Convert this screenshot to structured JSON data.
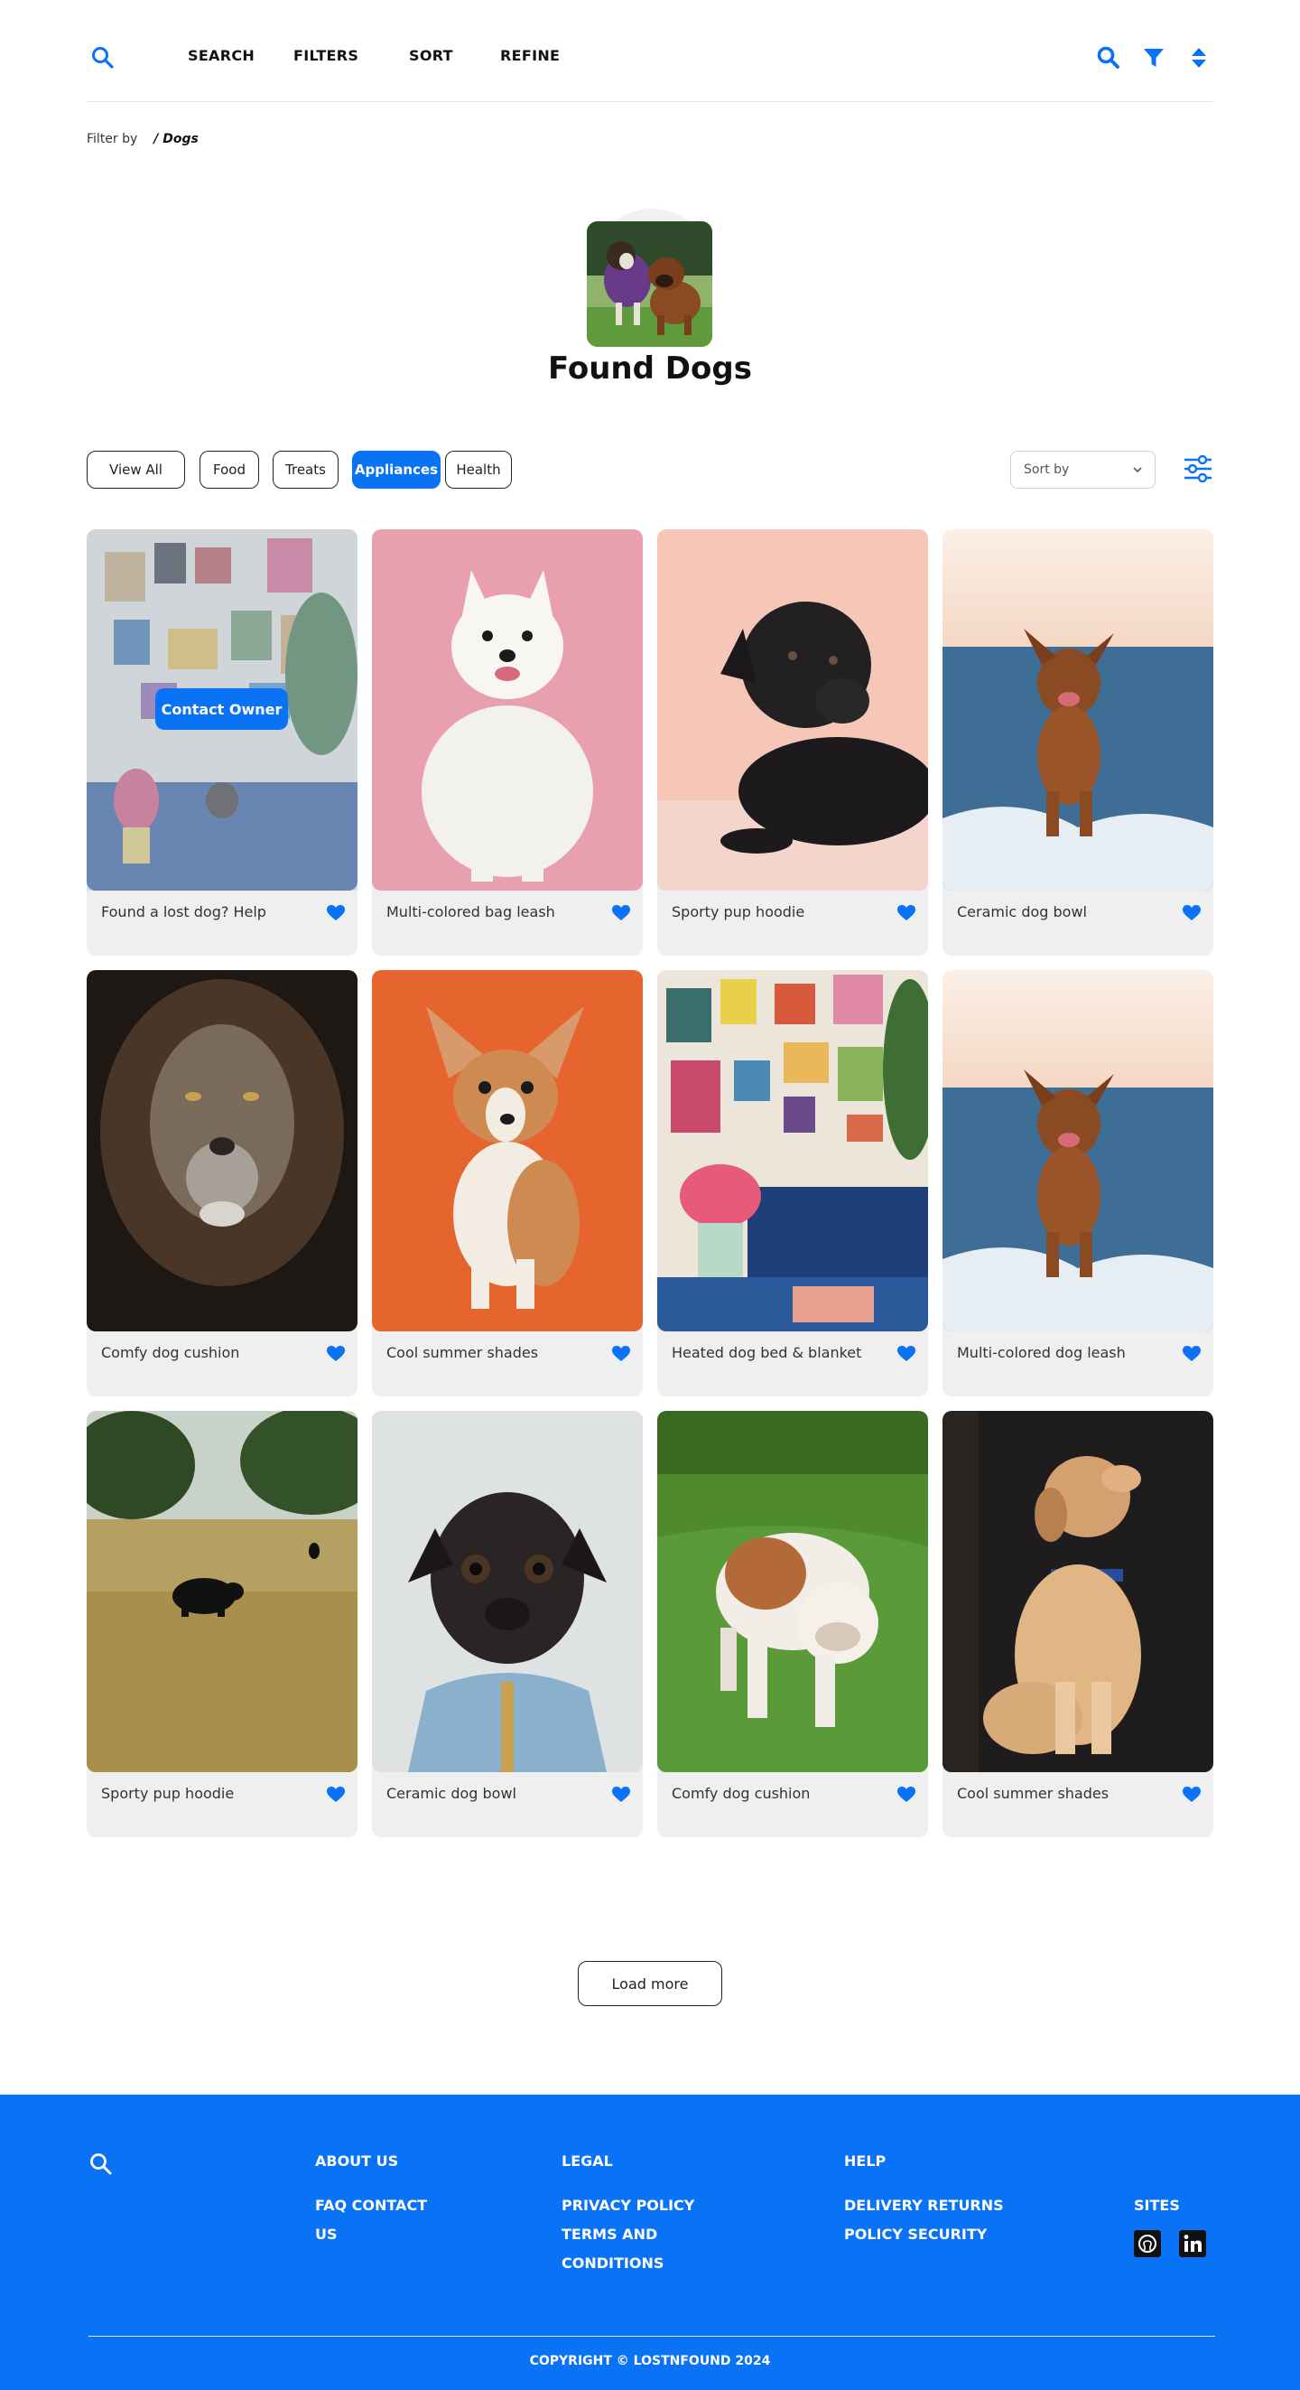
{
  "header": {
    "nav": [
      "SEARCH",
      "FILTERS",
      "SORT",
      "REFINE"
    ],
    "icons": [
      "search-icon",
      "filter-icon",
      "sort-icon"
    ]
  },
  "breadcrumb": {
    "label": "Filter by",
    "current": "/ Dogs"
  },
  "hero": {
    "title": "Found Dogs"
  },
  "filters": {
    "chips": [
      "View All",
      "Food",
      "Treats",
      "Appliances",
      "Health"
    ],
    "active": "Appliances",
    "sort_placeholder": "Sort by"
  },
  "cards": [
    {
      "title": "Found a lost dog? Help",
      "overlay_button": "Contact Owner"
    },
    {
      "title": "Multi-colored bag leash"
    },
    {
      "title": "Sporty pup hoodie"
    },
    {
      "title": "Ceramic dog bowl"
    },
    {
      "title": "Comfy dog cushion"
    },
    {
      "title": "Cool summer shades"
    },
    {
      "title": "Heated dog bed & blanket"
    },
    {
      "title": "Multi-colored dog leash"
    },
    {
      "title": "Sporty pup hoodie"
    },
    {
      "title": "Ceramic dog bowl"
    },
    {
      "title": "Comfy dog cushion"
    },
    {
      "title": "Cool summer shades"
    }
  ],
  "load_more": "Load more",
  "footer": {
    "about": {
      "heading": "ABOUT US",
      "links": [
        "FAQ CONTACT",
        "US"
      ]
    },
    "legal": {
      "heading": "LEGAL",
      "links": [
        "PRIVACY POLICY",
        "TERMS AND",
        "CONDITIONS"
      ]
    },
    "help": {
      "heading": "HELP",
      "links": [
        "DELIVERY RETURNS",
        "POLICY SECURITY"
      ]
    },
    "sites": {
      "heading": "SITES",
      "icons": [
        "github-icon",
        "linkedin-icon"
      ]
    },
    "copyright": "COPYRIGHT © LOSTNFOUND 2024"
  },
  "colors": {
    "accent": "#0a72f5"
  }
}
